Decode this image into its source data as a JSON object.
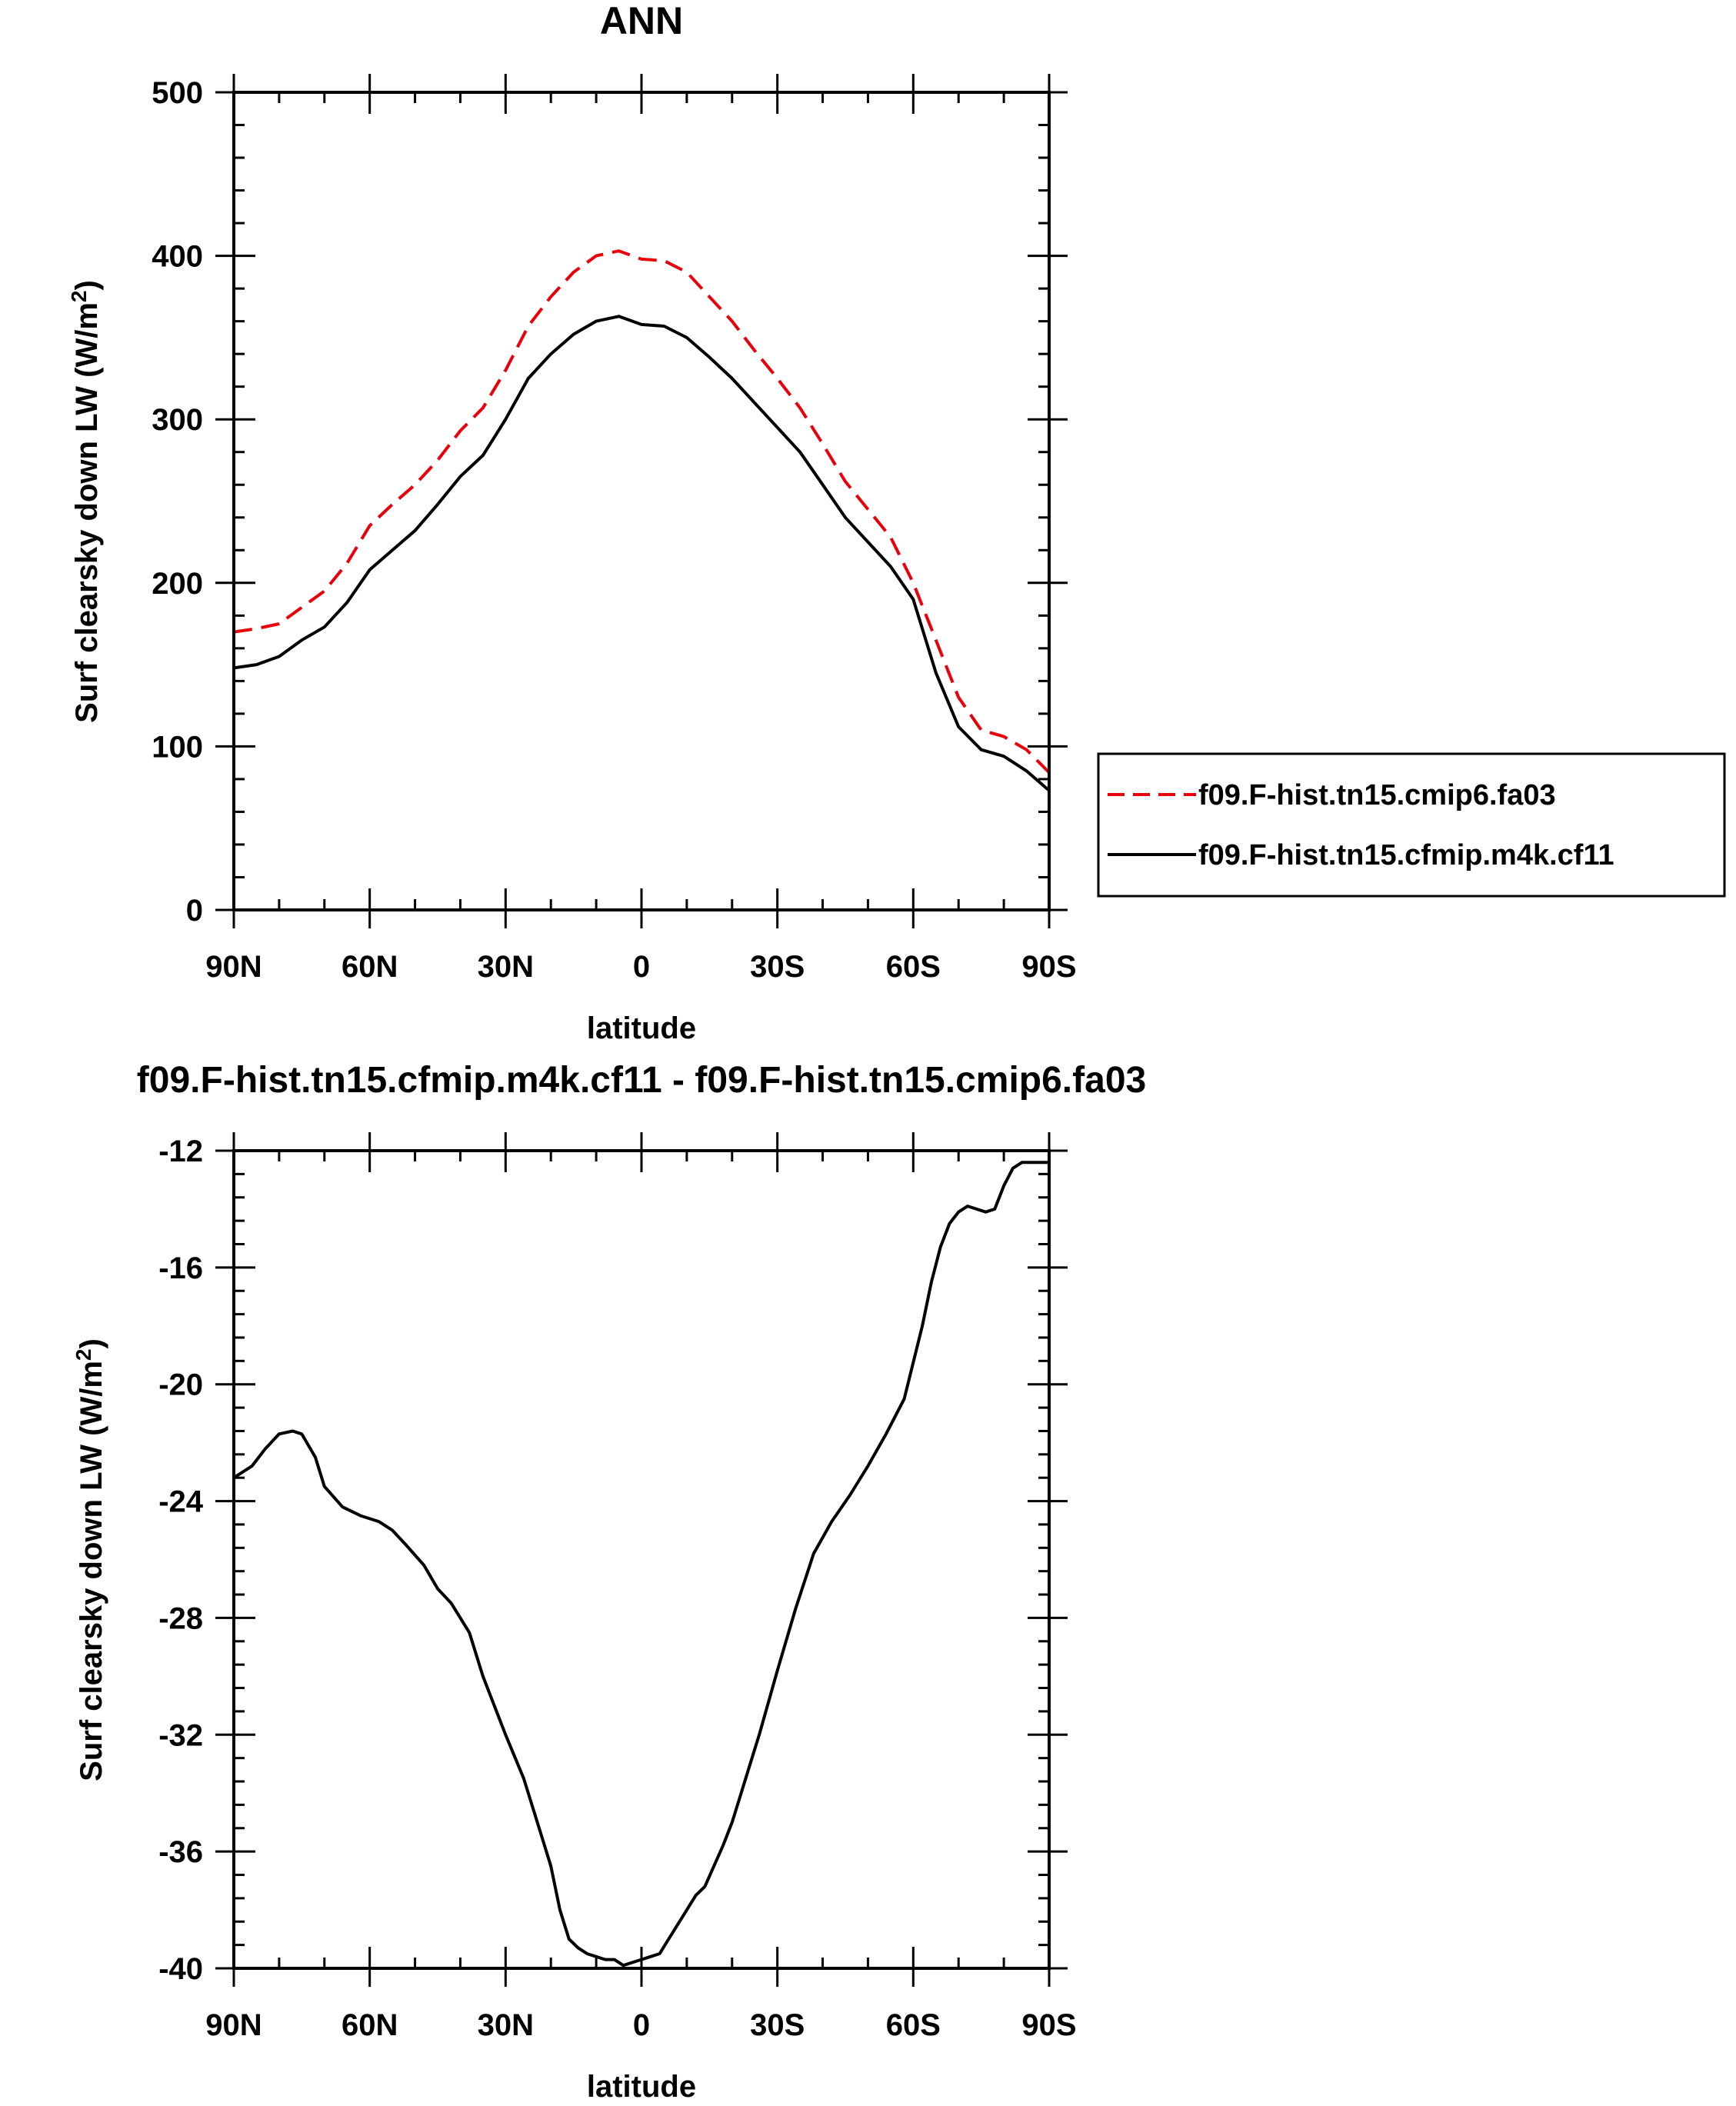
{
  "chart_data": [
    {
      "type": "line",
      "title": "ANN",
      "xlabel": "latitude",
      "ylabel_main": "Surf clearsky down LW (W/m",
      "ylabel_sup": "2",
      "ylabel_close": ")",
      "xlim": [
        -90,
        90
      ],
      "ylim": [
        0,
        500
      ],
      "x_ticks": [
        -90,
        -60,
        -30,
        0,
        30,
        60,
        90
      ],
      "x_tick_labels": [
        "90N",
        "60N",
        "30N",
        "0",
        "30S",
        "60S",
        "90S"
      ],
      "y_ticks": [
        0,
        100,
        200,
        300,
        400,
        500
      ],
      "y_tick_labels": [
        "0",
        "100",
        "200",
        "300",
        "400",
        "500"
      ],
      "series": [
        {
          "name": "f09.F-hist.tn15.cmip6.fa03",
          "color": "#e8000b",
          "dash": "dashed",
          "x": [
            -90,
            -85,
            -80,
            -75,
            -70,
            -65,
            -60,
            -55,
            -50,
            -45,
            -40,
            -35,
            -30,
            -25,
            -20,
            -15,
            -10,
            -5,
            0,
            5,
            10,
            15,
            20,
            25,
            30,
            35,
            40,
            45,
            50,
            55,
            60,
            65,
            70,
            75,
            80,
            85,
            90
          ],
          "y": [
            170,
            172,
            175,
            185,
            195,
            212,
            235,
            248,
            260,
            275,
            293,
            307,
            330,
            357,
            375,
            390,
            400,
            403,
            398,
            397,
            390,
            375,
            360,
            342,
            325,
            307,
            285,
            262,
            245,
            228,
            200,
            165,
            130,
            110,
            106,
            98,
            84
          ]
        },
        {
          "name": "f09.F-hist.tn15.cfmip.m4k.cf11",
          "color": "#000000",
          "dash": "solid",
          "x": [
            -90,
            -85,
            -80,
            -75,
            -70,
            -65,
            -60,
            -55,
            -50,
            -45,
            -40,
            -35,
            -30,
            -25,
            -20,
            -15,
            -10,
            -5,
            0,
            5,
            10,
            15,
            20,
            25,
            30,
            35,
            40,
            45,
            50,
            55,
            60,
            65,
            70,
            75,
            80,
            85,
            90
          ],
          "y": [
            148,
            150,
            155,
            165,
            173,
            188,
            208,
            220,
            232,
            248,
            265,
            278,
            300,
            325,
            340,
            352,
            360,
            363,
            358,
            357,
            350,
            338,
            325,
            310,
            295,
            280,
            260,
            240,
            225,
            210,
            190,
            145,
            112,
            98,
            94,
            85,
            73
          ]
        }
      ]
    },
    {
      "type": "line",
      "title": "f09.F-hist.tn15.cfmip.m4k.cf11 - f09.F-hist.tn15.cmip6.fa03",
      "xlabel": "latitude",
      "ylabel_main": "Surf clearsky down LW (W/m",
      "ylabel_sup": "2",
      "ylabel_close": ")",
      "xlim": [
        -90,
        90
      ],
      "ylim": [
        -40,
        -12
      ],
      "x_ticks": [
        -90,
        -60,
        -30,
        0,
        30,
        60,
        90
      ],
      "x_tick_labels": [
        "90N",
        "60N",
        "30N",
        "0",
        "30S",
        "60S",
        "90S"
      ],
      "y_ticks": [
        -40,
        -36,
        -32,
        -28,
        -24,
        -20,
        -16,
        -12
      ],
      "y_tick_labels": [
        "-40",
        "-36",
        "-32",
        "-28",
        "-24",
        "-20",
        "-16",
        "-12"
      ],
      "series": [
        {
          "name": "f09.F-hist.tn15.cfmip.m4k.cf11 - f09.F-hist.tn15.cmip6.fa03",
          "color": "#000000",
          "dash": "solid",
          "x": [
            -90,
            -86,
            -83,
            -80,
            -77,
            -75,
            -72,
            -70,
            -66,
            -62,
            -58,
            -55,
            -52,
            -48,
            -45,
            -42,
            -38,
            -35,
            -30,
            -26,
            -23,
            -20,
            -18,
            -16,
            -14,
            -12,
            -10,
            -8,
            -6,
            -4,
            -2,
            0,
            2,
            4,
            6,
            8,
            10,
            12,
            14,
            16,
            18,
            20,
            22,
            24,
            26,
            30,
            34,
            38,
            42,
            46,
            50,
            54,
            58,
            62,
            64,
            66,
            68,
            70,
            72,
            74,
            76,
            78,
            80,
            82,
            84,
            86,
            88,
            90
          ],
          "y": [
            -23.2,
            -22.8,
            -22.2,
            -21.7,
            -21.6,
            -21.7,
            -22.5,
            -23.5,
            -24.2,
            -24.5,
            -24.7,
            -25.0,
            -25.5,
            -26.2,
            -27.0,
            -27.5,
            -28.5,
            -30.0,
            -32.0,
            -33.5,
            -35.0,
            -36.5,
            -38.0,
            -39.0,
            -39.3,
            -39.5,
            -39.6,
            -39.7,
            -39.7,
            -39.9,
            -39.8,
            -39.7,
            -39.6,
            -39.5,
            -39.0,
            -38.5,
            -38.0,
            -37.5,
            -37.2,
            -36.5,
            -35.8,
            -35.0,
            -34.0,
            -33.0,
            -32.0,
            -29.8,
            -27.7,
            -25.8,
            -24.7,
            -23.8,
            -22.8,
            -21.7,
            -20.5,
            -18.0,
            -16.5,
            -15.3,
            -14.5,
            -14.1,
            -13.9,
            -14.0,
            -14.1,
            -14.0,
            -13.2,
            -12.6,
            -12.4,
            -12.4,
            -12.4,
            -12.4
          ]
        }
      ]
    }
  ]
}
